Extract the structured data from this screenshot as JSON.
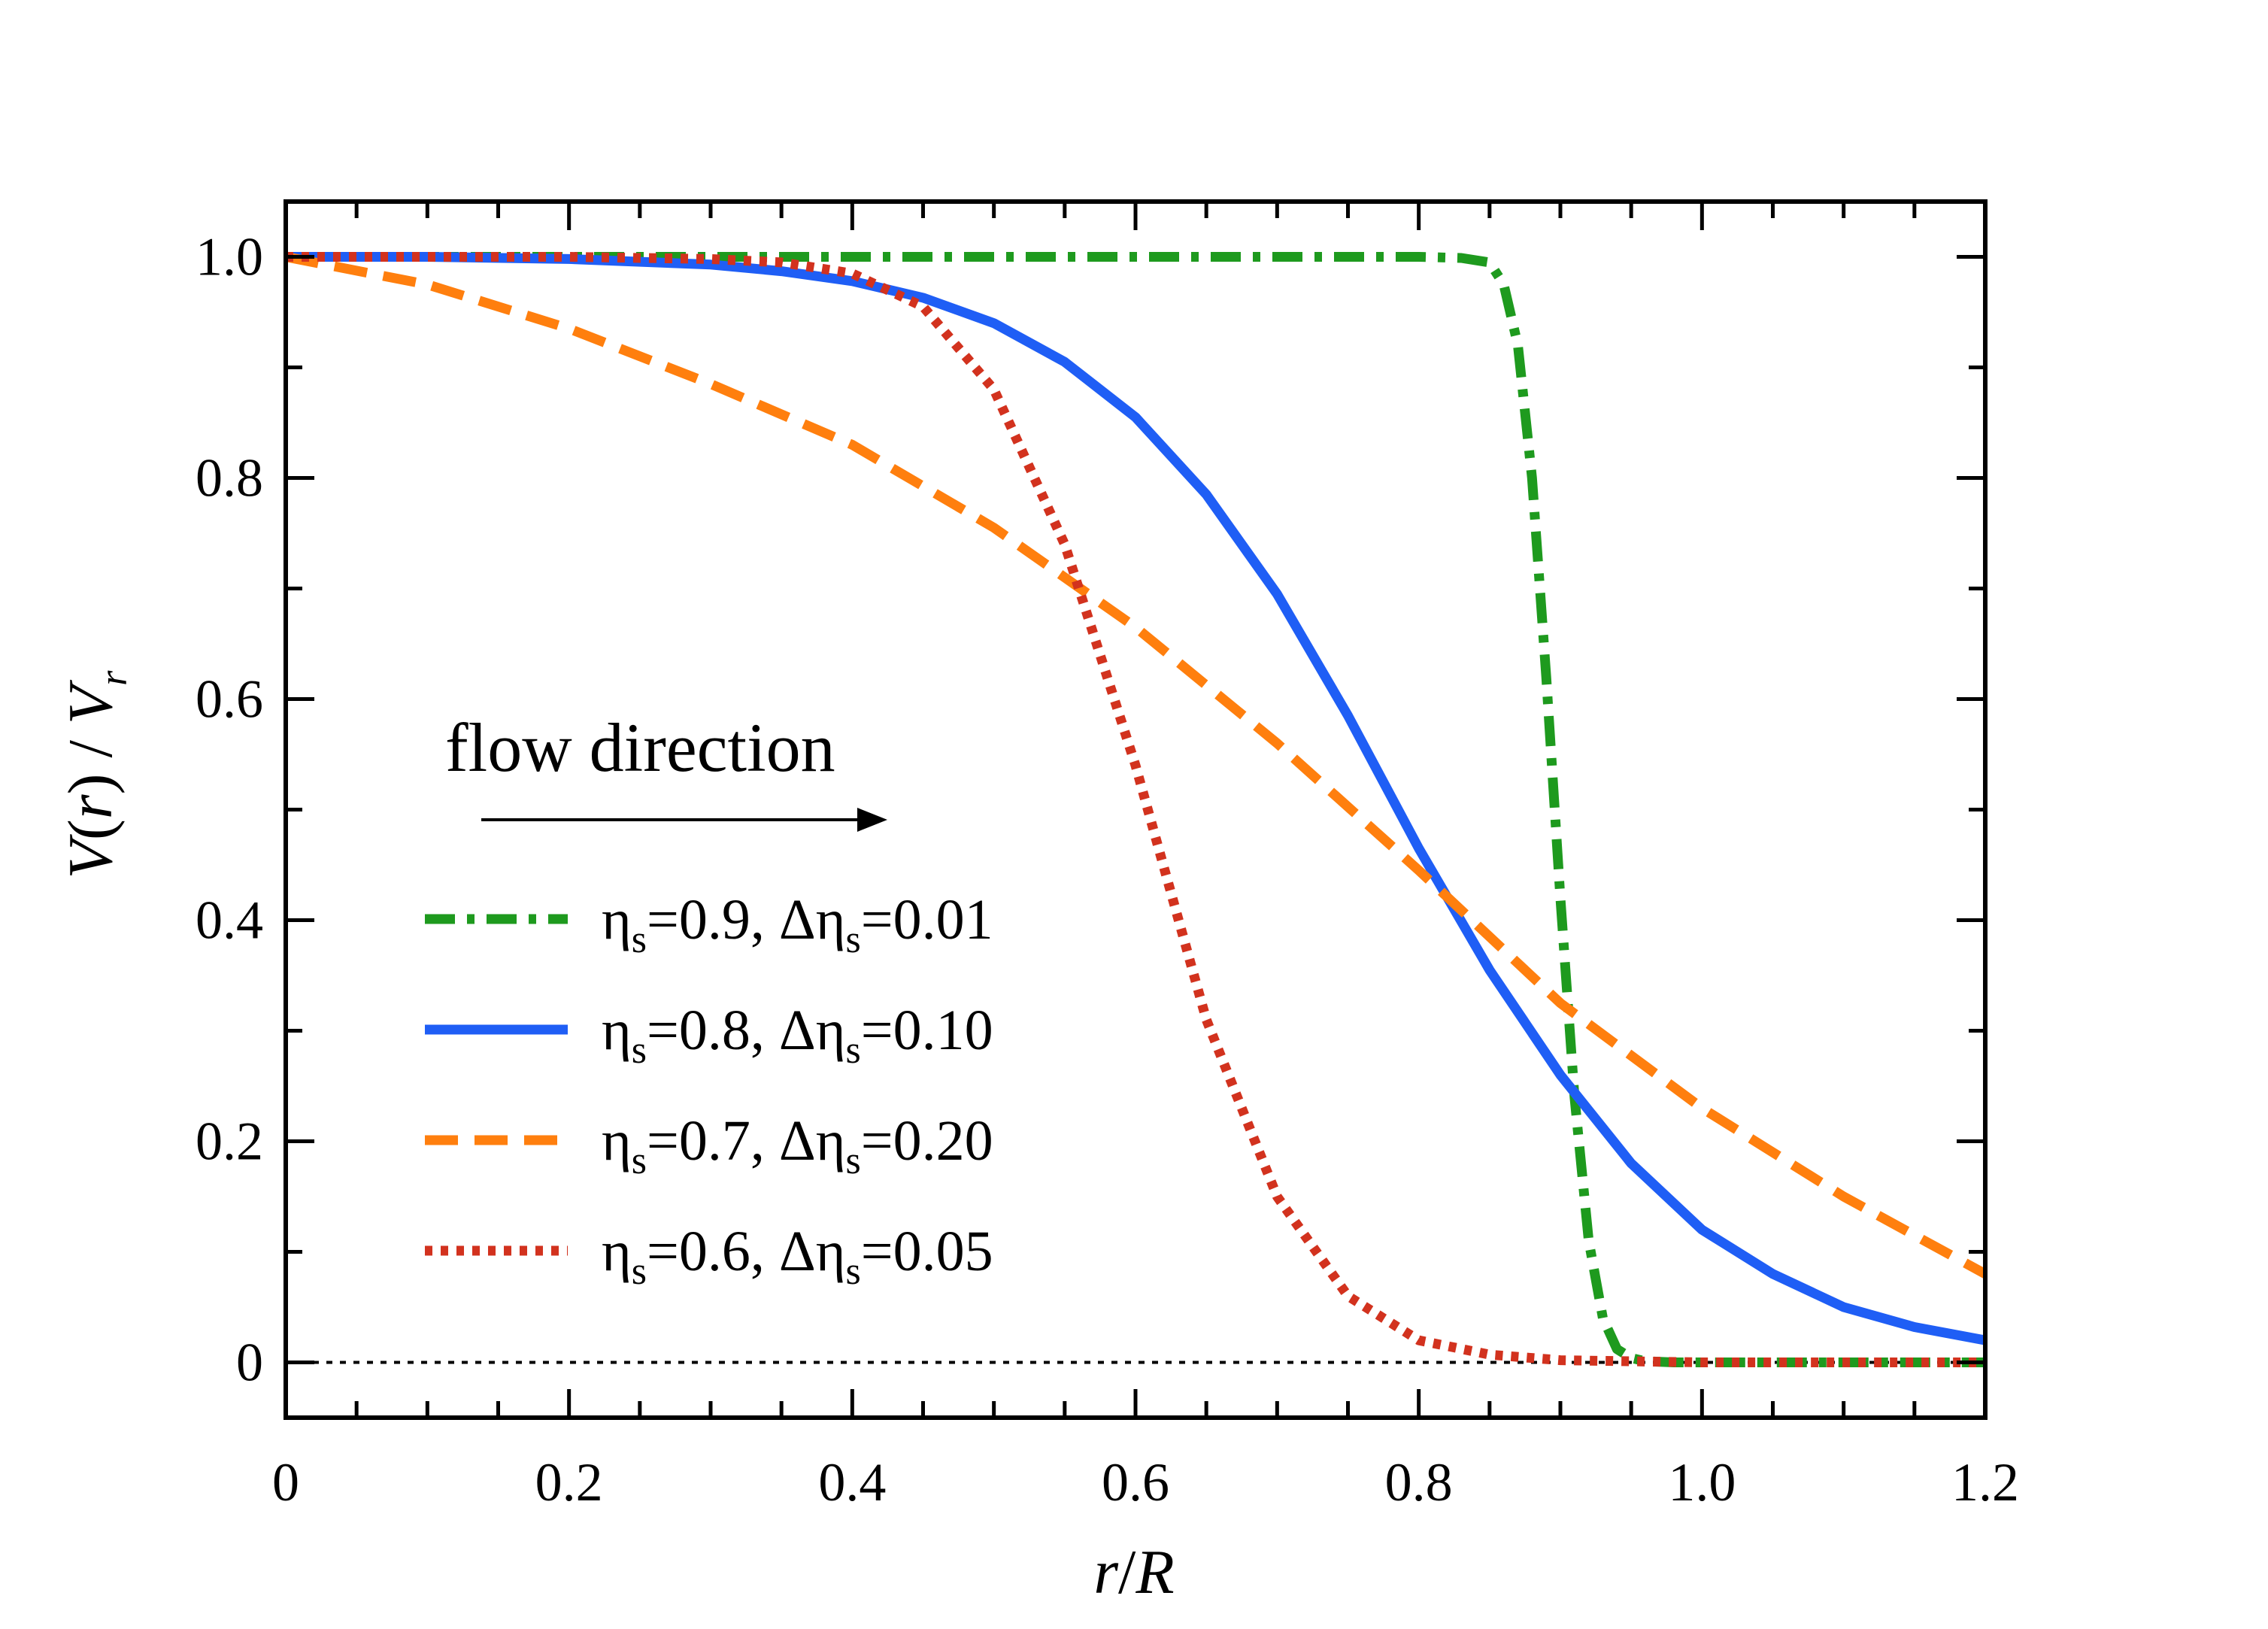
{
  "chart_data": {
    "type": "line",
    "title": "",
    "xlabel": "r/R",
    "ylabel": "V(r) / V_r",
    "xlabel_parts": {
      "var1": "r",
      "sep": "/",
      "var2": "R"
    },
    "ylabel_parts": {
      "func": "V",
      "open": "(",
      "arg": "r",
      "close": ")",
      "sep": " / ",
      "denom": "V",
      "denom_sub": "r"
    },
    "xlim": [
      0,
      1.2
    ],
    "ylim": [
      -0.05,
      1.05
    ],
    "xticks": [
      0,
      0.2,
      0.4,
      0.6,
      0.8,
      1.0,
      1.2
    ],
    "xtick_labels": [
      "0",
      "0.2",
      "0.4",
      "0.6",
      "0.8",
      "1.0",
      "1.2"
    ],
    "yticks": [
      0,
      0.2,
      0.4,
      0.6,
      0.8,
      1.0
    ],
    "ytick_labels": [
      "0",
      "0.2",
      "0.4",
      "0.6",
      "0.8",
      "1.0"
    ],
    "annotation": {
      "text": "flow direction",
      "arrow": "right"
    },
    "legend_position": "center-left",
    "reference_line": {
      "y": 0,
      "style": "dotted",
      "color": "#000000"
    },
    "series": [
      {
        "name": "ηs=0.9, Δηs=0.01",
        "legend": {
          "eta": "η",
          "sub1": "s",
          "mid": "=0.9, Δη",
          "sub2": "s",
          "end": "=0.01"
        },
        "color": "#1e9a1e",
        "style": "dashdot",
        "x": [
          0,
          0.1,
          0.2,
          0.3,
          0.4,
          0.5,
          0.6,
          0.7,
          0.8,
          0.83,
          0.85,
          0.86,
          0.87,
          0.88,
          0.89,
          0.9,
          0.91,
          0.92,
          0.93,
          0.94,
          0.95,
          0.96,
          0.98,
          1.0,
          1.1,
          1.2
        ],
        "y": [
          1,
          1,
          1,
          1,
          1,
          1,
          1,
          1,
          1,
          0.999,
          0.995,
          0.975,
          0.92,
          0.8,
          0.62,
          0.42,
          0.24,
          0.11,
          0.04,
          0.012,
          0.004,
          0.001,
          0,
          0,
          0,
          0
        ]
      },
      {
        "name": "ηs=0.8, Δηs=0.10",
        "legend": {
          "eta": "η",
          "sub1": "s",
          "mid": "=0.8, Δη",
          "sub2": "s",
          "end": "=0.10"
        },
        "color": "#1f5ef5",
        "style": "solid",
        "x": [
          0,
          0.1,
          0.2,
          0.3,
          0.35,
          0.4,
          0.45,
          0.5,
          0.55,
          0.6,
          0.65,
          0.7,
          0.75,
          0.8,
          0.85,
          0.9,
          0.95,
          1.0,
          1.05,
          1.1,
          1.15,
          1.2
        ],
        "y": [
          1.0,
          1.0,
          0.998,
          0.993,
          0.987,
          0.978,
          0.963,
          0.94,
          0.905,
          0.855,
          0.785,
          0.695,
          0.585,
          0.465,
          0.355,
          0.26,
          0.18,
          0.12,
          0.08,
          0.05,
          0.032,
          0.02
        ]
      },
      {
        "name": "ηs=0.7, Δηs=0.20",
        "legend": {
          "eta": "η",
          "sub1": "s",
          "mid": "=0.7, Δη",
          "sub2": "s",
          "end": "=0.20"
        },
        "color": "#ff7f0e",
        "style": "dashed",
        "x": [
          0,
          0.1,
          0.2,
          0.3,
          0.4,
          0.5,
          0.6,
          0.7,
          0.8,
          0.9,
          1.0,
          1.1,
          1.2
        ],
        "y": [
          1.0,
          0.975,
          0.935,
          0.885,
          0.83,
          0.755,
          0.665,
          0.56,
          0.445,
          0.325,
          0.23,
          0.15,
          0.08
        ]
      },
      {
        "name": "ηs=0.6, Δηs=0.05",
        "legend": {
          "eta": "η",
          "sub1": "s",
          "mid": "=0.6, Δη",
          "sub2": "s",
          "end": "=0.05"
        },
        "color": "#d2321e",
        "style": "dotted",
        "x": [
          0,
          0.1,
          0.2,
          0.3,
          0.35,
          0.4,
          0.45,
          0.5,
          0.55,
          0.6,
          0.65,
          0.7,
          0.75,
          0.8,
          0.85,
          0.9,
          1.0,
          1.1,
          1.2
        ],
        "y": [
          1.0,
          1.0,
          1.0,
          0.998,
          0.995,
          0.985,
          0.955,
          0.88,
          0.74,
          0.54,
          0.31,
          0.15,
          0.06,
          0.02,
          0.007,
          0.002,
          0,
          0,
          0
        ]
      }
    ]
  }
}
